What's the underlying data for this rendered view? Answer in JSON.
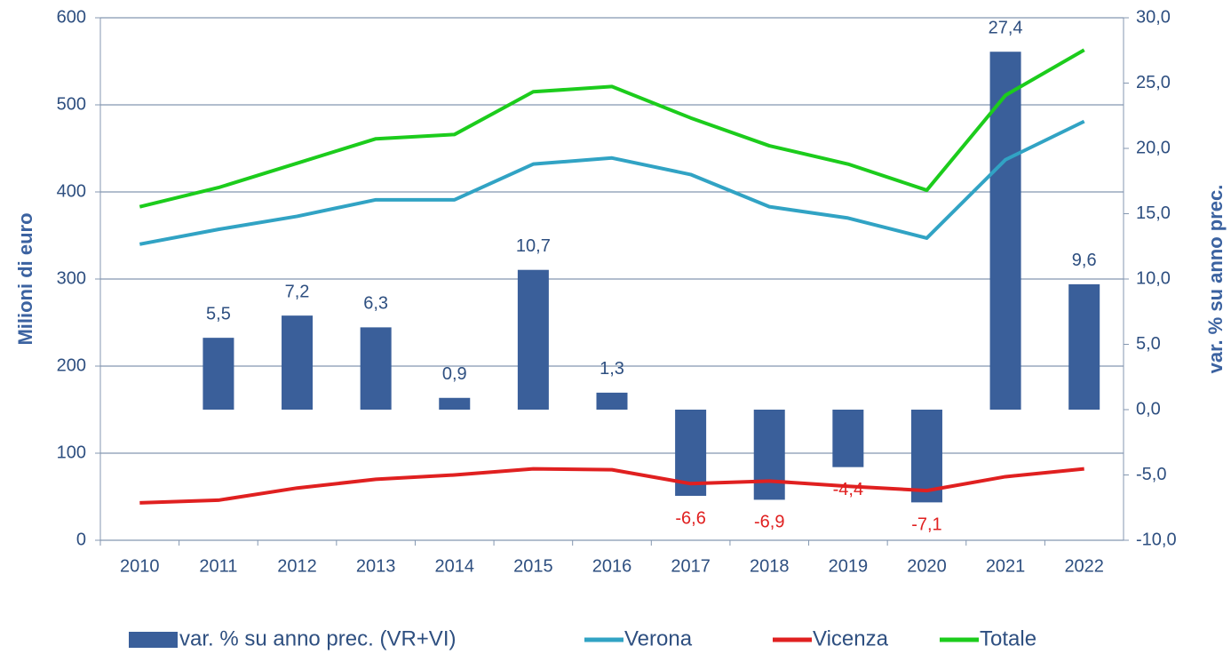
{
  "chart_data": {
    "type": "bar_line",
    "categories": [
      "2010",
      "2011",
      "2012",
      "2013",
      "2014",
      "2015",
      "2016",
      "2017",
      "2018",
      "2019",
      "2020",
      "2021",
      "2022"
    ],
    "ylabel": "Milioni di euro",
    "y2label": "var. % su anno prec.",
    "ylim": [
      0,
      600
    ],
    "yticks": [
      0,
      100,
      200,
      300,
      400,
      500,
      600
    ],
    "y2lim": [
      -10,
      30
    ],
    "y2ticks": [
      {
        "value": -10,
        "label": "-10,0"
      },
      {
        "value": -5,
        "label": "-5,0"
      },
      {
        "value": 0,
        "label": "0,0"
      },
      {
        "value": 5,
        "label": "5,0"
      },
      {
        "value": 10,
        "label": "10,0"
      },
      {
        "value": 15,
        "label": "15,0"
      },
      {
        "value": 20,
        "label": "20,0"
      },
      {
        "value": 25,
        "label": "25,0"
      },
      {
        "value": 30,
        "label": "30,0"
      }
    ],
    "grid": true,
    "legend": "bottom",
    "series": [
      {
        "name": "var. % su anno prec. (VR+VI)",
        "type": "bar",
        "axis": "y2",
        "color": "#3a5f9a",
        "values": [
          null,
          5.5,
          7.2,
          6.3,
          0.9,
          10.7,
          1.3,
          -6.6,
          -6.9,
          -4.4,
          -7.1,
          27.4,
          9.6
        ],
        "value_labels": [
          null,
          "5,5",
          "7,2",
          "6,3",
          "0,9",
          "10,7",
          "1,3",
          "-6,6",
          "-6,9",
          "-4,4",
          "-7,1",
          "27,4",
          "9,6"
        ]
      },
      {
        "name": "Verona",
        "type": "line",
        "color": "#31a3c4",
        "values": [
          340,
          357,
          372,
          391,
          391,
          432,
          439,
          420,
          383,
          370,
          347,
          437,
          481
        ]
      },
      {
        "name": "Vicenza",
        "type": "line",
        "color": "#e02020",
        "values": [
          43,
          46,
          60,
          70,
          75,
          82,
          81,
          65,
          68,
          62,
          57,
          73,
          82
        ]
      },
      {
        "name": "Totale",
        "type": "line",
        "color": "#1ccc1c",
        "values": [
          383,
          405,
          433,
          461,
          466,
          515,
          521,
          485,
          453,
          432,
          402,
          511,
          563
        ]
      }
    ]
  }
}
